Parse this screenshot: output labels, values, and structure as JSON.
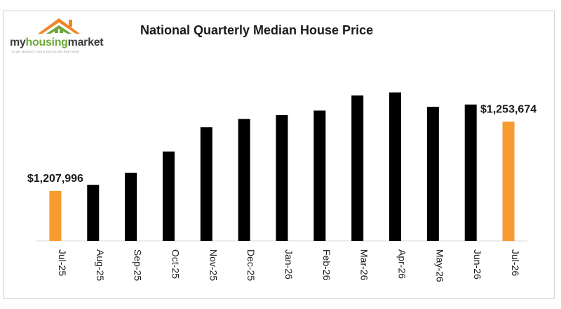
{
  "logo": {
    "word_part1": "my",
    "word_part2": "housing",
    "word_part3": "market",
    "tagline": "YOUR MARKET DATA DECISION PARTNER",
    "colors": {
      "roof_orange": "#f0862a",
      "roof_green": "#6fa83b",
      "text_dark": "#3c3c3c"
    }
  },
  "chart_data": {
    "type": "bar",
    "title": "National Quarterly Median House Price",
    "categories": [
      "Jul-25",
      "Aug-25",
      "Sep-25",
      "Oct-25",
      "Nov-25",
      "Dec-25",
      "Jan-26",
      "Feb-26",
      "Mar-26",
      "Apr-26",
      "May-26",
      "Jun-26",
      "Jul-26"
    ],
    "values": [
      1207996,
      1212000,
      1220000,
      1234000,
      1250000,
      1255500,
      1258000,
      1261000,
      1271000,
      1273000,
      1263500,
      1265000,
      1253674
    ],
    "highlight_indices": [
      0,
      12
    ],
    "data_labels": {
      "0": "$1,207,996",
      "12": "$1,253,674"
    },
    "colors": {
      "default": "#000000",
      "highlight": "#f79a2f"
    },
    "ylim": [
      1175000,
      1283000
    ],
    "axes_visible": false,
    "grid": false,
    "legend": "none"
  }
}
